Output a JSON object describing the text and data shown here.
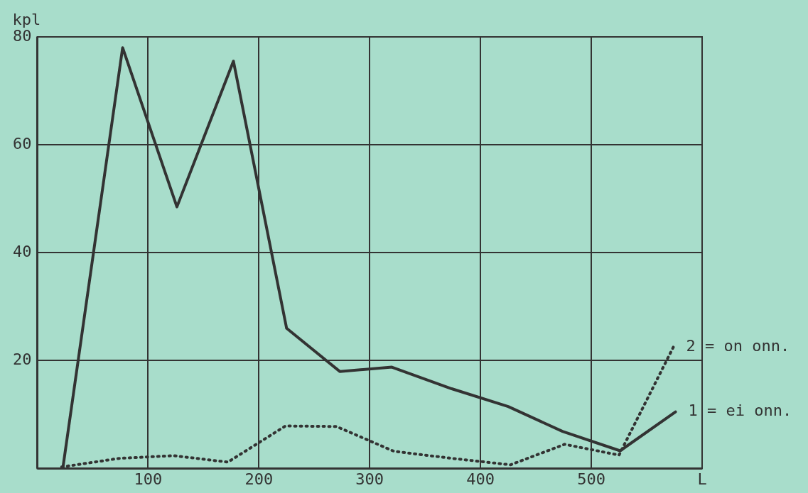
{
  "chart_data": {
    "type": "line",
    "ylabel": "kpl",
    "xlabel": "L",
    "xlim": [
      0,
      600
    ],
    "xticks": [
      100,
      200,
      300,
      400,
      500
    ],
    "ylim": [
      0,
      80
    ],
    "yticks": [
      20,
      40,
      60,
      80
    ],
    "grid": true,
    "legend": false,
    "marker": "none",
    "series": [
      {
        "name": "1 = ei onn.",
        "color": "#333333",
        "line_style": "solid",
        "x": [
          23,
          77,
          126,
          177,
          225,
          273,
          320,
          374,
          425,
          474,
          526,
          576
        ],
        "values": [
          0,
          78,
          48.5,
          75.5,
          26,
          18,
          18.8,
          14.8,
          11.5,
          6.9,
          3.3,
          10.5
        ]
      },
      {
        "name": "2 = on onn.",
        "color": "#333333",
        "line_style": "dotted",
        "x": [
          22,
          74,
          123,
          172,
          224,
          270,
          322,
          374,
          427,
          476,
          525,
          574
        ],
        "values": [
          0.3,
          1.9,
          2.4,
          1.2,
          7.9,
          7.8,
          3.2,
          1.9,
          0.7,
          4.5,
          2.5,
          22.5
        ]
      }
    ]
  }
}
